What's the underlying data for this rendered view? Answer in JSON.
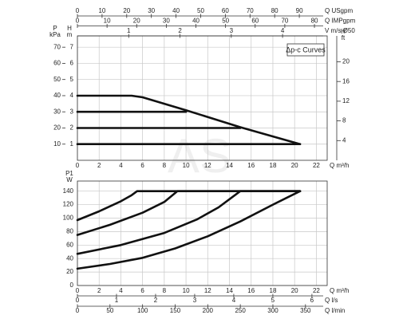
{
  "annotation": "Δp-c Curves",
  "watermark": "AS",
  "chart_data": [
    {
      "type": "line",
      "x_label": "Q m³/h",
      "xlim": [
        0,
        23
      ],
      "xticks": [
        0,
        2,
        4,
        6,
        8,
        10,
        12,
        14,
        16,
        18,
        20,
        22
      ],
      "y_label": [
        "H",
        "m"
      ],
      "ylim": [
        0,
        7.7
      ],
      "yticks": [
        1,
        2,
        3,
        4,
        5,
        6,
        7
      ],
      "y3_label": [
        "P",
        "kPa"
      ],
      "y3lim": [
        0,
        77
      ],
      "y3ticks": [
        10,
        20,
        30,
        40,
        50,
        60,
        70
      ],
      "y2_label": [
        "H",
        "ft"
      ],
      "y2lim": [
        0,
        25.26
      ],
      "y2ticks": [
        4,
        8,
        12,
        16,
        20
      ],
      "grid": true,
      "top_axes": [
        {
          "label": "Q USgpm",
          "lim": [
            0,
            101.3
          ],
          "ticks": [
            0,
            10,
            20,
            30,
            40,
            50,
            60,
            70,
            80,
            90
          ]
        },
        {
          "label": "Q IMPgpm",
          "lim": [
            0,
            84.3
          ],
          "ticks": [
            0,
            10,
            20,
            30,
            40,
            50,
            60,
            70,
            80
          ]
        },
        {
          "label": "V m/s Ø50",
          "lim": [
            0,
            4.87
          ],
          "ticks": [
            1,
            2,
            3,
            4
          ]
        }
      ],
      "series": [
        {
          "color": "#111111",
          "x": [
            0,
            5,
            6,
            10,
            15,
            20.5
          ],
          "values": [
            4,
            4,
            3.9,
            3.1,
            2.05,
            1
          ]
        },
        {
          "color": "#111111",
          "x": [
            0,
            10
          ],
          "values": [
            3,
            3
          ]
        },
        {
          "color": "#111111",
          "x": [
            0,
            15
          ],
          "values": [
            2,
            2
          ]
        },
        {
          "color": "#111111",
          "x": [
            0,
            20.5
          ],
          "values": [
            1,
            1
          ]
        }
      ]
    },
    {
      "type": "line",
      "x_label": "Q m³/h",
      "xlim": [
        0,
        23
      ],
      "xticks": [
        0,
        2,
        4,
        6,
        8,
        10,
        12,
        14,
        16,
        18,
        20,
        22
      ],
      "y_label": [
        "P1",
        "W"
      ],
      "ylim": [
        0,
        155
      ],
      "yticks": [
        0,
        20,
        40,
        60,
        80,
        100,
        120,
        140
      ],
      "grid": true,
      "bottom_axes": [
        {
          "label": "Q l/s",
          "lim": [
            0,
            6.39
          ],
          "ticks": [
            0,
            1,
            2,
            3,
            4,
            5,
            6
          ]
        },
        {
          "label": "Q l/min",
          "lim": [
            0,
            383.3
          ],
          "ticks": [
            0,
            50,
            100,
            150,
            200,
            250,
            300,
            350
          ]
        }
      ],
      "series": [
        {
          "color": "#111111",
          "x": [
            0,
            2,
            4,
            5,
            5.5,
            20.5
          ],
          "values": [
            97,
            110,
            125,
            134,
            140,
            140
          ]
        },
        {
          "color": "#111111",
          "x": [
            0,
            3,
            6,
            8,
            9.2,
            20.5
          ],
          "values": [
            75,
            90,
            108,
            124,
            140,
            140
          ]
        },
        {
          "color": "#111111",
          "x": [
            0,
            4,
            8,
            11,
            13,
            15,
            20.5
          ],
          "values": [
            47,
            60,
            78,
            98,
            116,
            140,
            140
          ]
        },
        {
          "color": "#111111",
          "x": [
            0,
            3,
            6,
            9,
            12,
            15,
            18,
            20.5
          ],
          "values": [
            25,
            32,
            41,
            55,
            73,
            95,
            120,
            140
          ]
        }
      ]
    }
  ]
}
